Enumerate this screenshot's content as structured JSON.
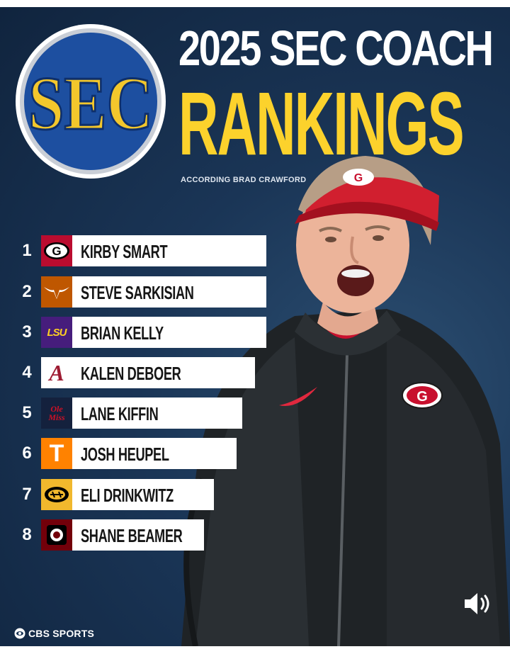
{
  "header": {
    "title_line1": "2025 SEC COACH",
    "title_line2": "RANKINGS",
    "credit": "ACCORDING BRAD CRAWFORD",
    "logo_text": "SEC"
  },
  "rankings": [
    {
      "rank": "1",
      "name": "KIRBY SMART",
      "school_icon": "georgia-g-logo",
      "badge_color": "#ba0c2f",
      "badge_text": ""
    },
    {
      "rank": "2",
      "name": "STEVE SARKISIAN",
      "school_icon": "texas-longhorn-logo",
      "badge_color": "#bf5700",
      "badge_text": ""
    },
    {
      "rank": "3",
      "name": "BRIAN KELLY",
      "school_icon": "lsu-logo",
      "badge_color": "#461d7c",
      "badge_text": "LSU"
    },
    {
      "rank": "4",
      "name": "KALEN DEBOER",
      "school_icon": "alabama-a-logo",
      "badge_color": "#9e1b32",
      "badge_text": "A"
    },
    {
      "rank": "5",
      "name": "LANE KIFFIN",
      "school_icon": "ole-miss-logo",
      "badge_color": "#14213d",
      "badge_text": "Ole Miss"
    },
    {
      "rank": "6",
      "name": "JOSH HEUPEL",
      "school_icon": "tennessee-t-logo",
      "badge_color": "#ff8200",
      "badge_text": "T"
    },
    {
      "rank": "7",
      "name": "ELI DRINKWITZ",
      "school_icon": "missouri-tiger-logo",
      "badge_color": "#f1b82d",
      "badge_text": ""
    },
    {
      "rank": "8",
      "name": "SHANE BEAMER",
      "school_icon": "south-carolina-logo",
      "badge_color": "#73000a",
      "badge_text": ""
    }
  ],
  "footer": {
    "brand": "CBS SPORTS",
    "sound_icon": "speaker-icon"
  },
  "colors": {
    "background": "#1a3556",
    "title_yellow": "#fcd22c",
    "sec_blue": "#1d4fa0",
    "sec_gold": "#f3c72c"
  }
}
